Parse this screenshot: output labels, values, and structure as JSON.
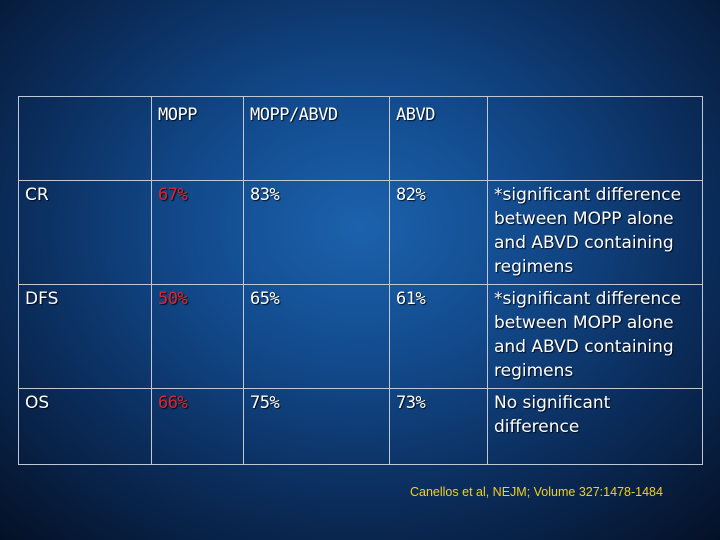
{
  "table": {
    "headers": [
      "",
      "MOPP",
      "MOPP/ABVD",
      "ABVD",
      ""
    ],
    "rows": [
      {
        "label": "CR",
        "mopp": "67%",
        "mopp_abvd": "83%",
        "abvd": "82%",
        "note": "*significant difference between MOPP alone and ABVD containing regimens"
      },
      {
        "label": "DFS",
        "mopp": "50%",
        "mopp_abvd": "65%",
        "abvd": "61%",
        "note": "*significant difference between MOPP alone and ABVD containing regimens"
      },
      {
        "label": "OS",
        "mopp": "66%",
        "mopp_abvd": "75%",
        "abvd": "73%",
        "note": "No significant difference"
      }
    ]
  },
  "citation": "Canellos et al, NEJM; Volume 327:1478-1484",
  "colors": {
    "background_center": "#1c62ad",
    "background_edge": "#040f24",
    "text": "#ffffff",
    "mopp_value": "#e0232b",
    "citation": "#f2d21b",
    "grid_line": "#bfc8d6"
  }
}
